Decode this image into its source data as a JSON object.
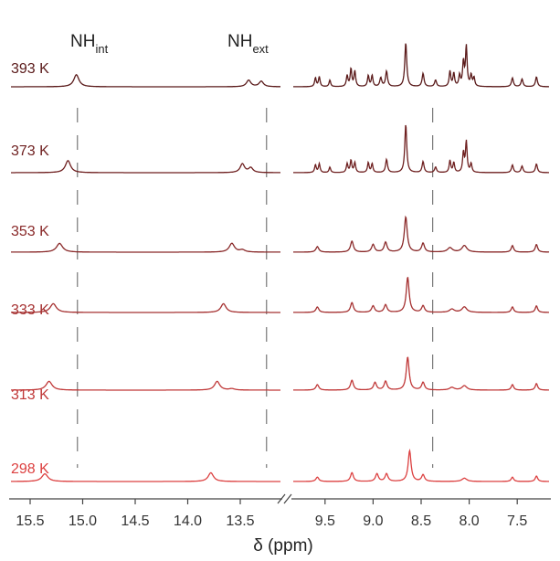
{
  "chart_data": {
    "type": "line",
    "chart_kind": "stacked variable-temperature 1H NMR spectra",
    "xlabel": "δ (ppm)",
    "x_axis": {
      "reversed": true,
      "broken": true,
      "segments": [
        {
          "range": [
            15.7,
            13.1
          ],
          "ticks": [
            15.5,
            15.0,
            14.5,
            14.0,
            13.5
          ]
        },
        {
          "range": [
            9.85,
            7.15
          ],
          "ticks": [
            9.5,
            9.0,
            8.5,
            8.0,
            7.5
          ]
        }
      ]
    },
    "region_labels": [
      {
        "base": "NH",
        "sub": "int",
        "x": 15.05
      },
      {
        "base": "NH",
        "sub": "ext",
        "x": 13.25
      }
    ],
    "guide_lines_x": [
      15.05,
      13.25,
      8.38
    ],
    "grid": false,
    "series": [
      {
        "name": "393 K",
        "color": "#5a1a1a",
        "peaks": [
          {
            "x": 15.06,
            "h": 0.55,
            "w": 0.03
          },
          {
            "x": 13.42,
            "h": 0.3,
            "w": 0.025
          },
          {
            "x": 13.3,
            "h": 0.25,
            "w": 0.025
          },
          {
            "x": 9.6,
            "h": 0.4,
            "w": 0.01
          },
          {
            "x": 9.56,
            "h": 0.45,
            "w": 0.01
          },
          {
            "x": 9.45,
            "h": 0.3,
            "w": 0.01
          },
          {
            "x": 9.27,
            "h": 0.5,
            "w": 0.01
          },
          {
            "x": 9.23,
            "h": 0.8,
            "w": 0.01
          },
          {
            "x": 9.19,
            "h": 0.7,
            "w": 0.01
          },
          {
            "x": 9.05,
            "h": 0.5,
            "w": 0.01
          },
          {
            "x": 9.01,
            "h": 0.5,
            "w": 0.01
          },
          {
            "x": 8.92,
            "h": 0.4,
            "w": 0.012
          },
          {
            "x": 8.86,
            "h": 0.7,
            "w": 0.012
          },
          {
            "x": 8.66,
            "h": 2.0,
            "w": 0.012
          },
          {
            "x": 8.48,
            "h": 0.6,
            "w": 0.012
          },
          {
            "x": 8.35,
            "h": 0.3,
            "w": 0.012
          },
          {
            "x": 8.2,
            "h": 0.7,
            "w": 0.01
          },
          {
            "x": 8.16,
            "h": 0.6,
            "w": 0.01
          },
          {
            "x": 8.1,
            "h": 0.5,
            "w": 0.01
          },
          {
            "x": 8.06,
            "h": 1.1,
            "w": 0.01
          },
          {
            "x": 8.03,
            "h": 1.8,
            "w": 0.01
          },
          {
            "x": 7.98,
            "h": 0.5,
            "w": 0.01
          },
          {
            "x": 7.95,
            "h": 0.4,
            "w": 0.01
          },
          {
            "x": 7.55,
            "h": 0.4,
            "w": 0.012
          },
          {
            "x": 7.45,
            "h": 0.35,
            "w": 0.012
          },
          {
            "x": 7.3,
            "h": 0.45,
            "w": 0.012
          }
        ]
      },
      {
        "name": "373 K",
        "color": "#6e1f1f",
        "peaks": [
          {
            "x": 15.14,
            "h": 0.55,
            "w": 0.03
          },
          {
            "x": 13.48,
            "h": 0.4,
            "w": 0.025
          },
          {
            "x": 13.4,
            "h": 0.22,
            "w": 0.025
          },
          {
            "x": 9.6,
            "h": 0.35,
            "w": 0.01
          },
          {
            "x": 9.56,
            "h": 0.4,
            "w": 0.01
          },
          {
            "x": 9.45,
            "h": 0.25,
            "w": 0.01
          },
          {
            "x": 9.27,
            "h": 0.4,
            "w": 0.01
          },
          {
            "x": 9.23,
            "h": 0.55,
            "w": 0.01
          },
          {
            "x": 9.19,
            "h": 0.45,
            "w": 0.01
          },
          {
            "x": 9.05,
            "h": 0.45,
            "w": 0.01
          },
          {
            "x": 9.01,
            "h": 0.4,
            "w": 0.01
          },
          {
            "x": 8.86,
            "h": 0.6,
            "w": 0.012
          },
          {
            "x": 8.66,
            "h": 2.2,
            "w": 0.012
          },
          {
            "x": 8.48,
            "h": 0.5,
            "w": 0.012
          },
          {
            "x": 8.35,
            "h": 0.25,
            "w": 0.012
          },
          {
            "x": 8.2,
            "h": 0.55,
            "w": 0.01
          },
          {
            "x": 8.16,
            "h": 0.45,
            "w": 0.01
          },
          {
            "x": 8.06,
            "h": 0.9,
            "w": 0.01
          },
          {
            "x": 8.03,
            "h": 1.4,
            "w": 0.01
          },
          {
            "x": 7.98,
            "h": 0.4,
            "w": 0.01
          },
          {
            "x": 7.55,
            "h": 0.35,
            "w": 0.012
          },
          {
            "x": 7.45,
            "h": 0.3,
            "w": 0.012
          },
          {
            "x": 7.3,
            "h": 0.4,
            "w": 0.012
          }
        ]
      },
      {
        "name": "353 K",
        "color": "#892828",
        "peaks": [
          {
            "x": 15.22,
            "h": 0.4,
            "w": 0.035
          },
          {
            "x": 13.58,
            "h": 0.4,
            "w": 0.03
          },
          {
            "x": 13.48,
            "h": 0.1,
            "w": 0.03
          },
          {
            "x": 9.58,
            "h": 0.25,
            "w": 0.018
          },
          {
            "x": 9.22,
            "h": 0.5,
            "w": 0.018
          },
          {
            "x": 9.0,
            "h": 0.35,
            "w": 0.018
          },
          {
            "x": 8.87,
            "h": 0.45,
            "w": 0.018
          },
          {
            "x": 8.66,
            "h": 1.6,
            "w": 0.018
          },
          {
            "x": 8.48,
            "h": 0.4,
            "w": 0.018
          },
          {
            "x": 8.2,
            "h": 0.2,
            "w": 0.03
          },
          {
            "x": 8.05,
            "h": 0.3,
            "w": 0.03
          },
          {
            "x": 7.55,
            "h": 0.3,
            "w": 0.015
          },
          {
            "x": 7.3,
            "h": 0.35,
            "w": 0.015
          }
        ]
      },
      {
        "name": "333 K",
        "color": "#a53030",
        "peaks": [
          {
            "x": 15.28,
            "h": 0.4,
            "w": 0.035
          },
          {
            "x": 13.66,
            "h": 0.4,
            "w": 0.03
          },
          {
            "x": 9.58,
            "h": 0.25,
            "w": 0.018
          },
          {
            "x": 9.22,
            "h": 0.45,
            "w": 0.018
          },
          {
            "x": 9.0,
            "h": 0.3,
            "w": 0.018
          },
          {
            "x": 8.87,
            "h": 0.35,
            "w": 0.018
          },
          {
            "x": 8.64,
            "h": 1.6,
            "w": 0.018
          },
          {
            "x": 8.48,
            "h": 0.3,
            "w": 0.018
          },
          {
            "x": 8.18,
            "h": 0.15,
            "w": 0.03
          },
          {
            "x": 8.05,
            "h": 0.25,
            "w": 0.03
          },
          {
            "x": 7.55,
            "h": 0.25,
            "w": 0.015
          },
          {
            "x": 7.3,
            "h": 0.3,
            "w": 0.015
          }
        ]
      },
      {
        "name": "313 K",
        "color": "#c03838",
        "peaks": [
          {
            "x": 15.32,
            "h": 0.4,
            "w": 0.035
          },
          {
            "x": 13.72,
            "h": 0.4,
            "w": 0.03
          },
          {
            "x": 13.58,
            "h": 0.06,
            "w": 0.03
          },
          {
            "x": 9.58,
            "h": 0.25,
            "w": 0.018
          },
          {
            "x": 9.22,
            "h": 0.45,
            "w": 0.018
          },
          {
            "x": 8.98,
            "h": 0.35,
            "w": 0.018
          },
          {
            "x": 8.87,
            "h": 0.4,
            "w": 0.018
          },
          {
            "x": 8.64,
            "h": 1.5,
            "w": 0.018
          },
          {
            "x": 8.48,
            "h": 0.35,
            "w": 0.018
          },
          {
            "x": 8.18,
            "h": 0.12,
            "w": 0.03
          },
          {
            "x": 8.05,
            "h": 0.2,
            "w": 0.03
          },
          {
            "x": 7.55,
            "h": 0.25,
            "w": 0.015
          },
          {
            "x": 7.3,
            "h": 0.3,
            "w": 0.015
          }
        ]
      },
      {
        "name": "298 K",
        "color": "#dc4040",
        "peaks": [
          {
            "x": 15.36,
            "h": 0.35,
            "w": 0.035
          },
          {
            "x": 13.78,
            "h": 0.4,
            "w": 0.03
          },
          {
            "x": 9.58,
            "h": 0.2,
            "w": 0.018
          },
          {
            "x": 9.22,
            "h": 0.4,
            "w": 0.018
          },
          {
            "x": 8.96,
            "h": 0.35,
            "w": 0.018
          },
          {
            "x": 8.86,
            "h": 0.35,
            "w": 0.018
          },
          {
            "x": 8.62,
            "h": 1.4,
            "w": 0.018
          },
          {
            "x": 8.48,
            "h": 0.3,
            "w": 0.018
          },
          {
            "x": 8.05,
            "h": 0.15,
            "w": 0.03
          },
          {
            "x": 7.55,
            "h": 0.2,
            "w": 0.015
          },
          {
            "x": 7.3,
            "h": 0.25,
            "w": 0.015
          }
        ]
      }
    ]
  }
}
